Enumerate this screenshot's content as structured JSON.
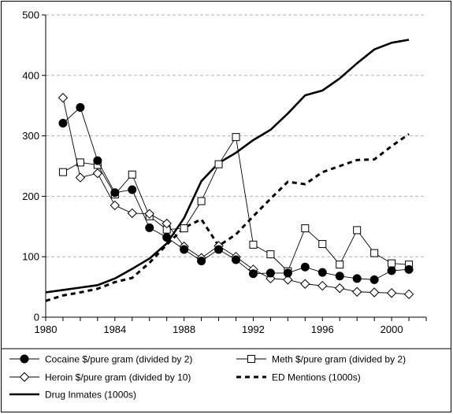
{
  "chart_data": {
    "type": "line",
    "title": "",
    "xlabel": "",
    "ylabel": "",
    "xlim": [
      1980,
      2002
    ],
    "ylim": [
      0,
      500
    ],
    "x_ticks": [
      "1980",
      "1984",
      "1988",
      "1992",
      "1996",
      "2000"
    ],
    "y_ticks": [
      "0",
      "100",
      "200",
      "300",
      "400",
      "500"
    ],
    "grid": "horizontal dashed",
    "legend_position": "bottom",
    "series": [
      {
        "name": "Cocaine $/pure gram (divided by 2)",
        "marker": "filled-circle",
        "line": "solid-thin",
        "color": "#000000",
        "x": [
          1981,
          1982,
          1983,
          1984,
          1985,
          1986,
          1987,
          1988,
          1989,
          1990,
          1991,
          1992,
          1993,
          1994,
          1995,
          1996,
          1997,
          1998,
          1999,
          2000,
          2001
        ],
        "y": [
          321,
          347,
          259,
          206,
          211,
          148,
          132,
          112,
          93,
          112,
          95,
          72,
          73,
          73,
          83,
          74,
          68,
          64,
          62,
          77,
          79
        ]
      },
      {
        "name": "Meth $/pure gram (divided by 2)",
        "marker": "open-square",
        "line": "solid-thin",
        "color": "#000000",
        "x": [
          1981,
          1982,
          1983,
          1984,
          1985,
          1986,
          1987,
          1988,
          1989,
          1990,
          1991,
          1992,
          1993,
          1994,
          1995,
          1996,
          1997,
          1998,
          1999,
          2000,
          2001
        ],
        "y": [
          240,
          256,
          252,
          203,
          236,
          167,
          145,
          147,
          192,
          253,
          298,
          120,
          104,
          76,
          147,
          121,
          87,
          144,
          106,
          89,
          87
        ]
      },
      {
        "name": "Heroin $/pure gram (divided by 10)",
        "marker": "open-diamond",
        "line": "solid-thin",
        "color": "#000000",
        "x": [
          1981,
          1982,
          1983,
          1984,
          1985,
          1986,
          1987,
          1988,
          1989,
          1990,
          1991,
          1992,
          1993,
          1994,
          1995,
          1996,
          1997,
          1998,
          1999,
          2000,
          2001
        ],
        "y": [
          363,
          231,
          238,
          185,
          172,
          171,
          155,
          117,
          98,
          118,
          100,
          79,
          64,
          62,
          55,
          52,
          48,
          42,
          41,
          40,
          38
        ]
      },
      {
        "name": "ED Mentions (1000s)",
        "marker": "none",
        "line": "dashed-thick",
        "color": "#000000",
        "x": [
          1980,
          1981,
          1982,
          1983,
          1984,
          1985,
          1986,
          1987,
          1988,
          1989,
          1990,
          1991,
          1992,
          1993,
          1994,
          1995,
          1996,
          1997,
          1998,
          1999,
          2000,
          2001
        ],
        "y": [
          27,
          36,
          41,
          47,
          58,
          65,
          90,
          120,
          148,
          162,
          118,
          137,
          167,
          196,
          224,
          220,
          240,
          250,
          260,
          261,
          283,
          303
        ]
      },
      {
        "name": "Drug Inmates (1000s)",
        "marker": "none",
        "line": "solid-thick",
        "color": "#000000",
        "x": [
          1980,
          1981,
          1982,
          1983,
          1984,
          1985,
          1986,
          1987,
          1988,
          1989,
          1990,
          1991,
          1992,
          1993,
          1994,
          1995,
          1996,
          1997,
          1998,
          1999,
          2000,
          2001
        ],
        "y": [
          41,
          45,
          49,
          53,
          64,
          80,
          97,
          122,
          164,
          225,
          255,
          272,
          293,
          310,
          337,
          367,
          375,
          395,
          420,
          443,
          454,
          459
        ]
      }
    ]
  }
}
